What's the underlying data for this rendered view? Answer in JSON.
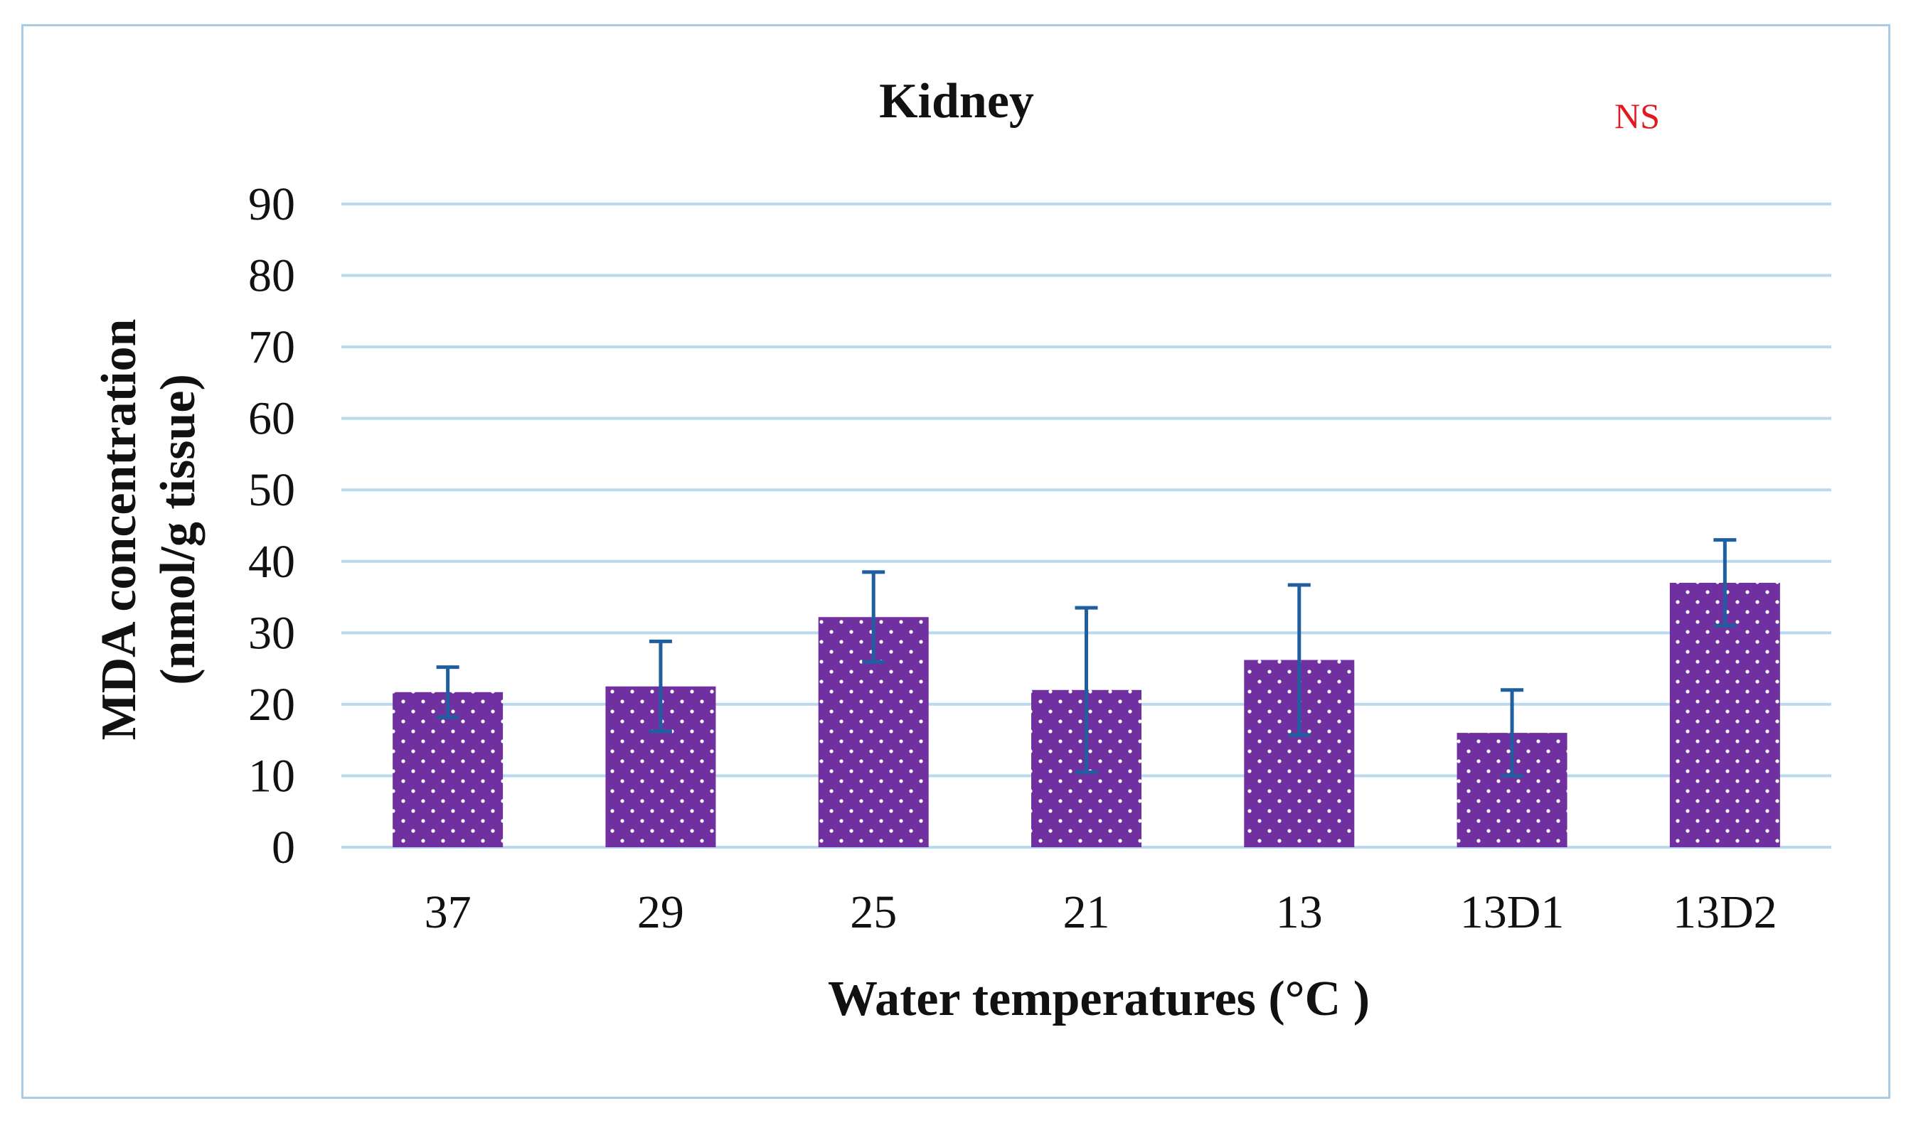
{
  "chart_data": {
    "type": "bar",
    "title": "Kidney",
    "annotation": "NS",
    "xlabel": "Water temperatures (°C )",
    "ylabel_line1": "MDA concentration",
    "ylabel_line2": "(nmol/g tissue)",
    "ylim": [
      0,
      90
    ],
    "yticks": [
      0,
      10,
      20,
      30,
      40,
      50,
      60,
      70,
      80,
      90
    ],
    "categories": [
      "37",
      "29",
      "25",
      "21",
      "13",
      "13D1",
      "13D2"
    ],
    "values": [
      21.7,
      22.5,
      32.2,
      22.0,
      26.2,
      16.0,
      37.0
    ],
    "error_plus_minus": [
      3.5,
      6.3,
      6.3,
      11.5,
      10.5,
      6.0,
      6.0
    ],
    "grid": true,
    "legend": "none"
  },
  "colors": {
    "bar": "#7030a0",
    "bar_dots": "#ffffff",
    "error_bar": "#1f5fa0",
    "grid": "#b9d9f0",
    "axis": "#b9d9f0",
    "text": "#111111",
    "annotation": "#e0191f",
    "frame": "#a9cbe6"
  }
}
